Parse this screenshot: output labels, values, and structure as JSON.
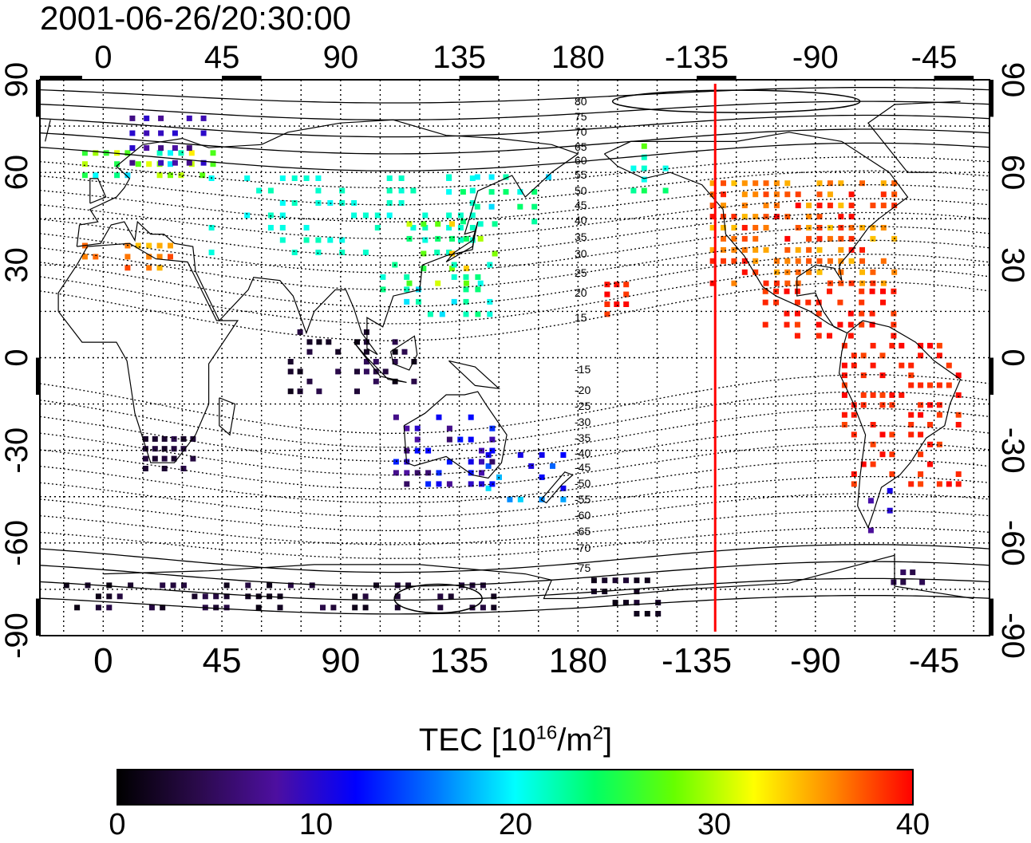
{
  "timestamp": "2001-06-26/20:30:00",
  "axes": {
    "lon_tick_labels": [
      "0",
      "45",
      "90",
      "135",
      "180",
      "-135",
      "-90",
      "-45"
    ],
    "lat_tick_labels": [
      "90",
      "60",
      "30",
      "0",
      "-30",
      "-60",
      "-90"
    ],
    "lon_range": [
      -24,
      336
    ],
    "lat_range": [
      -90,
      90
    ],
    "grid": "dotted, every 15 degrees"
  },
  "magnetic_latitude_labels": [
    "80",
    "75",
    "70",
    "65",
    "60",
    "55",
    "50",
    "45",
    "40",
    "35",
    "30",
    "25",
    "20",
    "15",
    "-15",
    "-20",
    "-25",
    "-30",
    "-35",
    "-40",
    "-45",
    "-50",
    "-55",
    "-60",
    "-65",
    "-70",
    "-75"
  ],
  "terminator_longitude": -128,
  "colorbar": {
    "title_prefix": "TEC  [10",
    "title_exp1": "16",
    "title_mid": "/m",
    "title_exp2": "2",
    "title_suffix": "]",
    "ticks": [
      "0",
      "10",
      "20",
      "30",
      "40"
    ],
    "range": [
      0,
      40
    ],
    "colormap": [
      "#000000",
      "#2a0a4a",
      "#4d0fa0",
      "#0000ff",
      "#0077ff",
      "#00ffff",
      "#00ff66",
      "#66ff00",
      "#ffff00",
      "#ff8800",
      "#ff0000"
    ]
  }
}
